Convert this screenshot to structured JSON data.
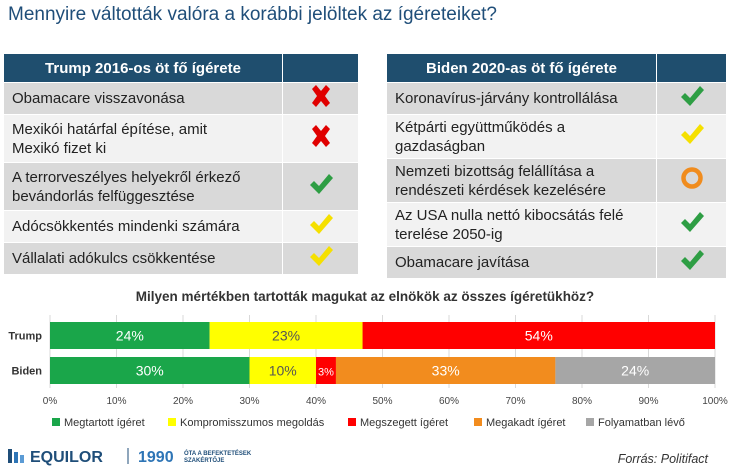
{
  "page_title": "Mennyire váltották valóra a korábbi jelöltek az ígéreteiket?",
  "trump_table": {
    "header": "Trump 2016-os öt fő ígérete",
    "rows": [
      {
        "l1": "Obamacare visszavonása",
        "l2": "",
        "status": "cross",
        "color": "#e00000"
      },
      {
        "l1": "Mexikói határfal építése, amit",
        "l2": "Mexikó fizet ki",
        "status": "cross",
        "color": "#e00000"
      },
      {
        "l1": "A terrorveszélyes helyekről érkező",
        "l2": "bevándorlás felfüggesztése",
        "status": "check",
        "color": "#2e9e44"
      },
      {
        "l1": "Adócsökkentés mindenki számára",
        "l2": "",
        "status": "check",
        "color": "#f5e000"
      },
      {
        "l1": "Vállalati adókulcs csökkentése",
        "l2": "",
        "status": "check",
        "color": "#f5e000"
      }
    ]
  },
  "biden_table": {
    "header": "Biden 2020-as öt fő ígérete",
    "rows": [
      {
        "l1": "Koronavírus-járvány kontrollálása",
        "l2": "",
        "status": "check",
        "color": "#2e9e44"
      },
      {
        "l1": "Kétpárti együttműködés a",
        "l2": "gazdaságban",
        "status": "check",
        "color": "#f5e000"
      },
      {
        "l1": "Nemzeti bizottság felállítása a",
        "l2": "rendészeti kérdések kezelésére",
        "status": "circle",
        "color": "#f08c1e"
      },
      {
        "l1": "Az USA nulla nettó kibocsátás felé",
        "l2": "terelése 2050-ig",
        "status": "check",
        "color": "#2e9e44"
      },
      {
        "l1": "Obamacare javítása",
        "l2": "",
        "status": "check",
        "color": "#2e9e44"
      }
    ]
  },
  "chart_data": {
    "type": "bar",
    "orientation": "horizontal",
    "stacked": true,
    "title": "Milyen mértékben tartották magukat az elnökök az összes ígéretükhöz?",
    "categories": [
      "Trump",
      "Biden"
    ],
    "series": [
      {
        "name": "Megtartott ígéret",
        "color": "#1aa64a",
        "values": [
          24,
          30
        ],
        "labels": [
          "24%",
          "30%"
        ]
      },
      {
        "name": "Kompromisszumos megoldás",
        "color": "#ffff00",
        "values": [
          23,
          10
        ],
        "labels": [
          "23%",
          "10%"
        ]
      },
      {
        "name": "Megszegett ígéret",
        "color": "#ff0000",
        "values": [
          54,
          3
        ],
        "labels": [
          "54%",
          "3%"
        ]
      },
      {
        "name": "Megakadt ígéret",
        "color": "#f28c1e",
        "values": [
          0,
          33
        ],
        "labels": [
          "",
          "33%"
        ]
      },
      {
        "name": "Folyamatban lévő",
        "color": "#a6a6a6",
        "values": [
          0,
          24
        ],
        "labels": [
          "",
          "24%"
        ]
      }
    ],
    "xlim": [
      0,
      100
    ],
    "xticks": [
      "0%",
      "10%",
      "20%",
      "30%",
      "40%",
      "50%",
      "60%",
      "70%",
      "80%",
      "90%",
      "100%"
    ],
    "grid": true,
    "legend": "bottom"
  },
  "logo": {
    "name": "EQUILOR",
    "year": "1990",
    "tagline1": "ÓTA A BEFEKTETÉSEK",
    "tagline2": "SZAKÉRTŐJE"
  },
  "source": "Forrás: Politifact"
}
